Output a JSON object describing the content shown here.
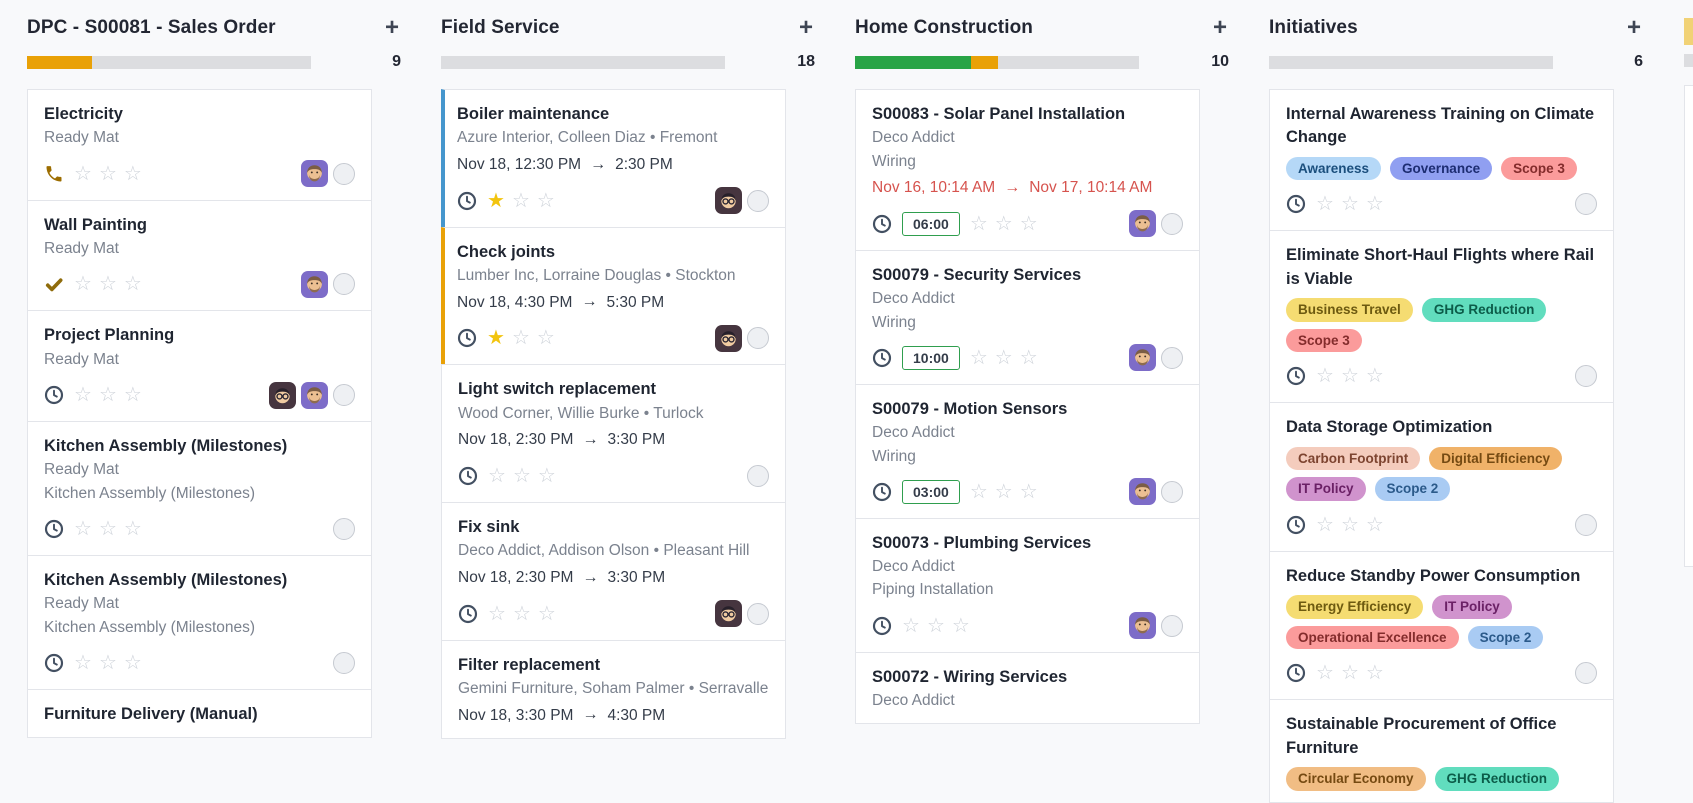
{
  "icons": {
    "add": "+",
    "arrow_right": "→"
  },
  "colors": {
    "progress_track": "#dcdde0",
    "overdue_text": "#d6534e",
    "badge_border": "#2f9e4e",
    "star_filled": "#f2c40e",
    "stripe_blue": "#4596cd",
    "stripe_orange": "#e9a107"
  },
  "next_column_partial": {
    "header_block_color": "#f1d276"
  },
  "board": {
    "columns": [
      {
        "title": "DPC - S00081 - Sales Order",
        "count": "9",
        "progress_segments": [
          {
            "status": "warning",
            "color": "#e9a107",
            "pct": 23
          }
        ],
        "cards": [
          {
            "title": "Electricity",
            "lines": [
              "Ready Mat"
            ],
            "footer": {
              "activity": "phone-icon",
              "stars_filled": 0,
              "stars_total": 3,
              "avatars": [
                "bearded-man"
              ],
              "state_circle": true
            }
          },
          {
            "title": "Wall Painting",
            "lines": [
              "Ready Mat"
            ],
            "footer": {
              "activity": "check-icon",
              "stars_filled": 0,
              "stars_total": 3,
              "avatars": [
                "bearded-man"
              ],
              "state_circle": true
            }
          },
          {
            "title": "Project Planning",
            "lines": [
              "Ready Mat"
            ],
            "footer": {
              "activity": "clock-icon",
              "stars_filled": 0,
              "stars_total": 3,
              "avatars": [
                "man-glasses",
                "bearded-man"
              ],
              "state_circle": true
            }
          },
          {
            "title": "Kitchen Assembly (Milestones)",
            "lines": [
              "Ready Mat",
              "Kitchen Assembly (Milestones)"
            ],
            "footer": {
              "activity": "clock-icon",
              "stars_filled": 0,
              "stars_total": 3,
              "avatars": [],
              "state_circle": true
            }
          },
          {
            "title": "Kitchen Assembly (Milestones)",
            "lines": [
              "Ready Mat",
              "Kitchen Assembly (Milestones)"
            ],
            "footer": {
              "activity": "clock-icon",
              "stars_filled": 0,
              "stars_total": 3,
              "avatars": [],
              "state_circle": true
            }
          },
          {
            "title": "Furniture Delivery (Manual)",
            "lines": []
          }
        ]
      },
      {
        "title": "Field Service",
        "count": "18",
        "progress_segments": [],
        "cards": [
          {
            "title": "Boiler maintenance",
            "stripe": "#4596cd",
            "lines": [
              "Azure Interior, Colleen Diaz • Fremont"
            ],
            "date": {
              "start": "Nov 18, 12:30 PM",
              "end": "2:30 PM",
              "overdue": false
            },
            "footer": {
              "activity": "clock-icon",
              "stars_filled": 1,
              "stars_total": 3,
              "avatars": [
                "man-glasses"
              ],
              "state_circle": true
            }
          },
          {
            "title": "Check joints",
            "stripe": "#e9a107",
            "lines": [
              "Lumber Inc, Lorraine Douglas • Stockton"
            ],
            "date": {
              "start": "Nov 18, 4:30 PM",
              "end": "5:30 PM",
              "overdue": false
            },
            "footer": {
              "activity": "clock-icon",
              "stars_filled": 1,
              "stars_total": 3,
              "avatars": [
                "man-glasses"
              ],
              "state_circle": true
            }
          },
          {
            "title": "Light switch replacement",
            "lines": [
              "Wood Corner, Willie Burke • Turlock"
            ],
            "date": {
              "start": "Nov 18, 2:30 PM",
              "end": "3:30 PM",
              "overdue": false
            },
            "footer": {
              "activity": "clock-icon",
              "stars_filled": 0,
              "stars_total": 3,
              "avatars": [],
              "state_circle": true
            }
          },
          {
            "title": "Fix sink",
            "lines": [
              "Deco Addict, Addison Olson • Pleasant Hill"
            ],
            "date": {
              "start": "Nov 18, 2:30 PM",
              "end": "3:30 PM",
              "overdue": false
            },
            "footer": {
              "activity": "clock-icon",
              "stars_filled": 0,
              "stars_total": 3,
              "avatars": [
                "man-glasses"
              ],
              "state_circle": true
            }
          },
          {
            "title": "Filter replacement",
            "lines": [
              "Gemini Furniture, Soham Palmer • Serravalle"
            ],
            "date": {
              "start": "Nov 18, 3:30 PM",
              "end": "4:30 PM",
              "overdue": false
            }
          }
        ]
      },
      {
        "title": "Home Construction",
        "count": "10",
        "progress_segments": [
          {
            "status": "success",
            "color": "#28a446",
            "pct": 41
          },
          {
            "status": "warning",
            "color": "#e9a107",
            "pct": 9.5
          }
        ],
        "cards": [
          {
            "title": "S00083 - Solar Panel Installation",
            "lines": [
              "Deco Addict",
              "Wiring"
            ],
            "date": {
              "start": "Nov 16, 10:14 AM",
              "end": "Nov 17, 10:14 AM",
              "overdue": true
            },
            "footer": {
              "activity": "clock-icon",
              "badge": "06:00",
              "stars_filled": 0,
              "stars_total": 3,
              "avatars": [
                "bearded-man"
              ],
              "state_circle": true
            }
          },
          {
            "title": "S00079 - Security Services",
            "lines": [
              "Deco Addict",
              "Wiring"
            ],
            "footer": {
              "activity": "clock-icon",
              "badge": "10:00",
              "stars_filled": 0,
              "stars_total": 3,
              "avatars": [
                "bearded-man"
              ],
              "state_circle": true
            }
          },
          {
            "title": "S00079 - Motion Sensors",
            "lines": [
              "Deco Addict",
              "Wiring"
            ],
            "footer": {
              "activity": "clock-icon",
              "badge": "03:00",
              "stars_filled": 0,
              "stars_total": 3,
              "avatars": [
                "bearded-man"
              ],
              "state_circle": true
            }
          },
          {
            "title": "S00073 - Plumbing Services",
            "lines": [
              "Deco Addict",
              "Piping Installation"
            ],
            "footer": {
              "activity": "clock-icon",
              "stars_filled": 0,
              "stars_total": 3,
              "avatars": [
                "bearded-man"
              ],
              "state_circle": true
            }
          },
          {
            "title": "S00072 - Wiring Services",
            "lines": [
              "Deco Addict"
            ]
          }
        ]
      },
      {
        "title": "Initiatives",
        "count": "6",
        "progress_segments": [],
        "cards": [
          {
            "title": "Internal Awareness Training on Climate Change",
            "tags": [
              {
                "label": "Awareness",
                "bg": "#b5d8f7",
                "fg": "#1b4f7d"
              },
              {
                "label": "Governance",
                "bg": "#909ff1",
                "fg": "#1d2d72"
              },
              {
                "label": "Scope 3",
                "bg": "#fb9b9b",
                "fg": "#832c2c"
              }
            ],
            "footer": {
              "activity": "clock-icon",
              "stars_filled": 0,
              "stars_total": 3,
              "avatars": [],
              "state_circle": true
            }
          },
          {
            "title": "Eliminate Short-Haul Flights where Rail is Viable",
            "tags": [
              {
                "label": "Business Travel",
                "bg": "#f5dc72",
                "fg": "#6d5a10"
              },
              {
                "label": "GHG Reduction",
                "bg": "#61ddbe",
                "fg": "#0c5c49"
              },
              {
                "label": "Scope 3",
                "bg": "#fb9b9b",
                "fg": "#832c2c"
              }
            ],
            "footer": {
              "activity": "clock-icon",
              "stars_filled": 0,
              "stars_total": 3,
              "avatars": [],
              "state_circle": true
            }
          },
          {
            "title": "Data Storage Optimization",
            "tags": [
              {
                "label": "Carbon Footprint",
                "bg": "#f4ccbd",
                "fg": "#7d4430"
              },
              {
                "label": "Digital Efficiency",
                "bg": "#f0b269",
                "fg": "#754a12"
              },
              {
                "label": "IT Policy",
                "bg": "#d093cd",
                "fg": "#6b2166"
              },
              {
                "label": "Scope 2",
                "bg": "#a9cbf3",
                "fg": "#2b5a8a"
              }
            ],
            "footer": {
              "activity": "clock-icon",
              "stars_filled": 0,
              "stars_total": 3,
              "avatars": [],
              "state_circle": true
            }
          },
          {
            "title": "Reduce Standby Power Consumption",
            "tags": [
              {
                "label": "Energy Efficiency",
                "bg": "#f5dc72",
                "fg": "#6d5a10"
              },
              {
                "label": "IT Policy",
                "bg": "#d093cd",
                "fg": "#6b2166"
              },
              {
                "label": "Operational Excellence",
                "bg": "#fb9b9b",
                "fg": "#832c2c"
              },
              {
                "label": "Scope 2",
                "bg": "#a9cbf3",
                "fg": "#2b5a8a"
              }
            ],
            "footer": {
              "activity": "clock-icon",
              "stars_filled": 0,
              "stars_total": 3,
              "avatars": [],
              "state_circle": true
            }
          },
          {
            "title": "Sustainable Procurement of Office Furniture",
            "tags": [
              {
                "label": "Circular Economy",
                "bg": "#f1bd84",
                "fg": "#754a12"
              },
              {
                "label": "GHG Reduction",
                "bg": "#61ddbe",
                "fg": "#0c5c49"
              }
            ]
          }
        ]
      }
    ]
  }
}
